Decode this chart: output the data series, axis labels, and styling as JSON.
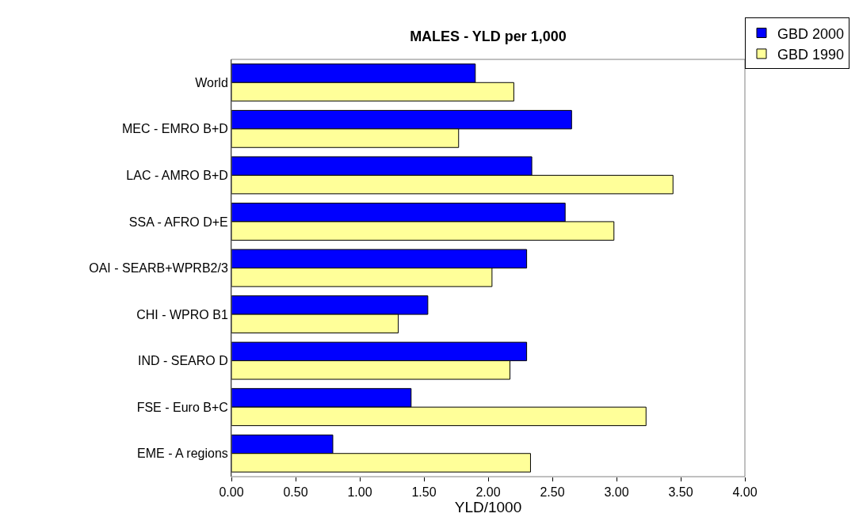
{
  "chart_data": {
    "type": "bar",
    "orientation": "horizontal",
    "title": "MALES - YLD per 1,000",
    "xlabel": "YLD/1000",
    "categories": [
      "World",
      "MEC - EMRO B+D",
      "LAC - AMRO B+D",
      "SSA - AFRO D+E",
      "OAI - SEARB+WPRB2/3",
      "CHI - WPRO B1",
      "IND - SEARO D",
      "FSE - Euro B+C",
      "EME - A regions"
    ],
    "series": [
      {
        "name": "GBD 2000",
        "color": "#0000ff",
        "values": [
          1.9,
          2.65,
          2.34,
          2.6,
          2.3,
          1.53,
          2.3,
          1.4,
          0.79
        ]
      },
      {
        "name": "GBD 1990",
        "color": "#ffff99",
        "values": [
          2.2,
          1.77,
          3.44,
          2.98,
          2.03,
          1.3,
          2.17,
          3.23,
          2.33
        ]
      }
    ],
    "xlim": [
      0,
      4
    ],
    "xticks": [
      {
        "value": 0,
        "label": "0.00"
      },
      {
        "value": 0.5,
        "label": "0.50"
      },
      {
        "value": 1,
        "label": "1.00"
      },
      {
        "value": 1.5,
        "label": "1.50"
      },
      {
        "value": 2,
        "label": "2.00"
      },
      {
        "value": 2.5,
        "label": "2.50"
      },
      {
        "value": 3,
        "label": "3.00"
      },
      {
        "value": 3.5,
        "label": "3.50"
      },
      {
        "value": 4,
        "label": "4.00"
      }
    ],
    "legend": "top right"
  }
}
